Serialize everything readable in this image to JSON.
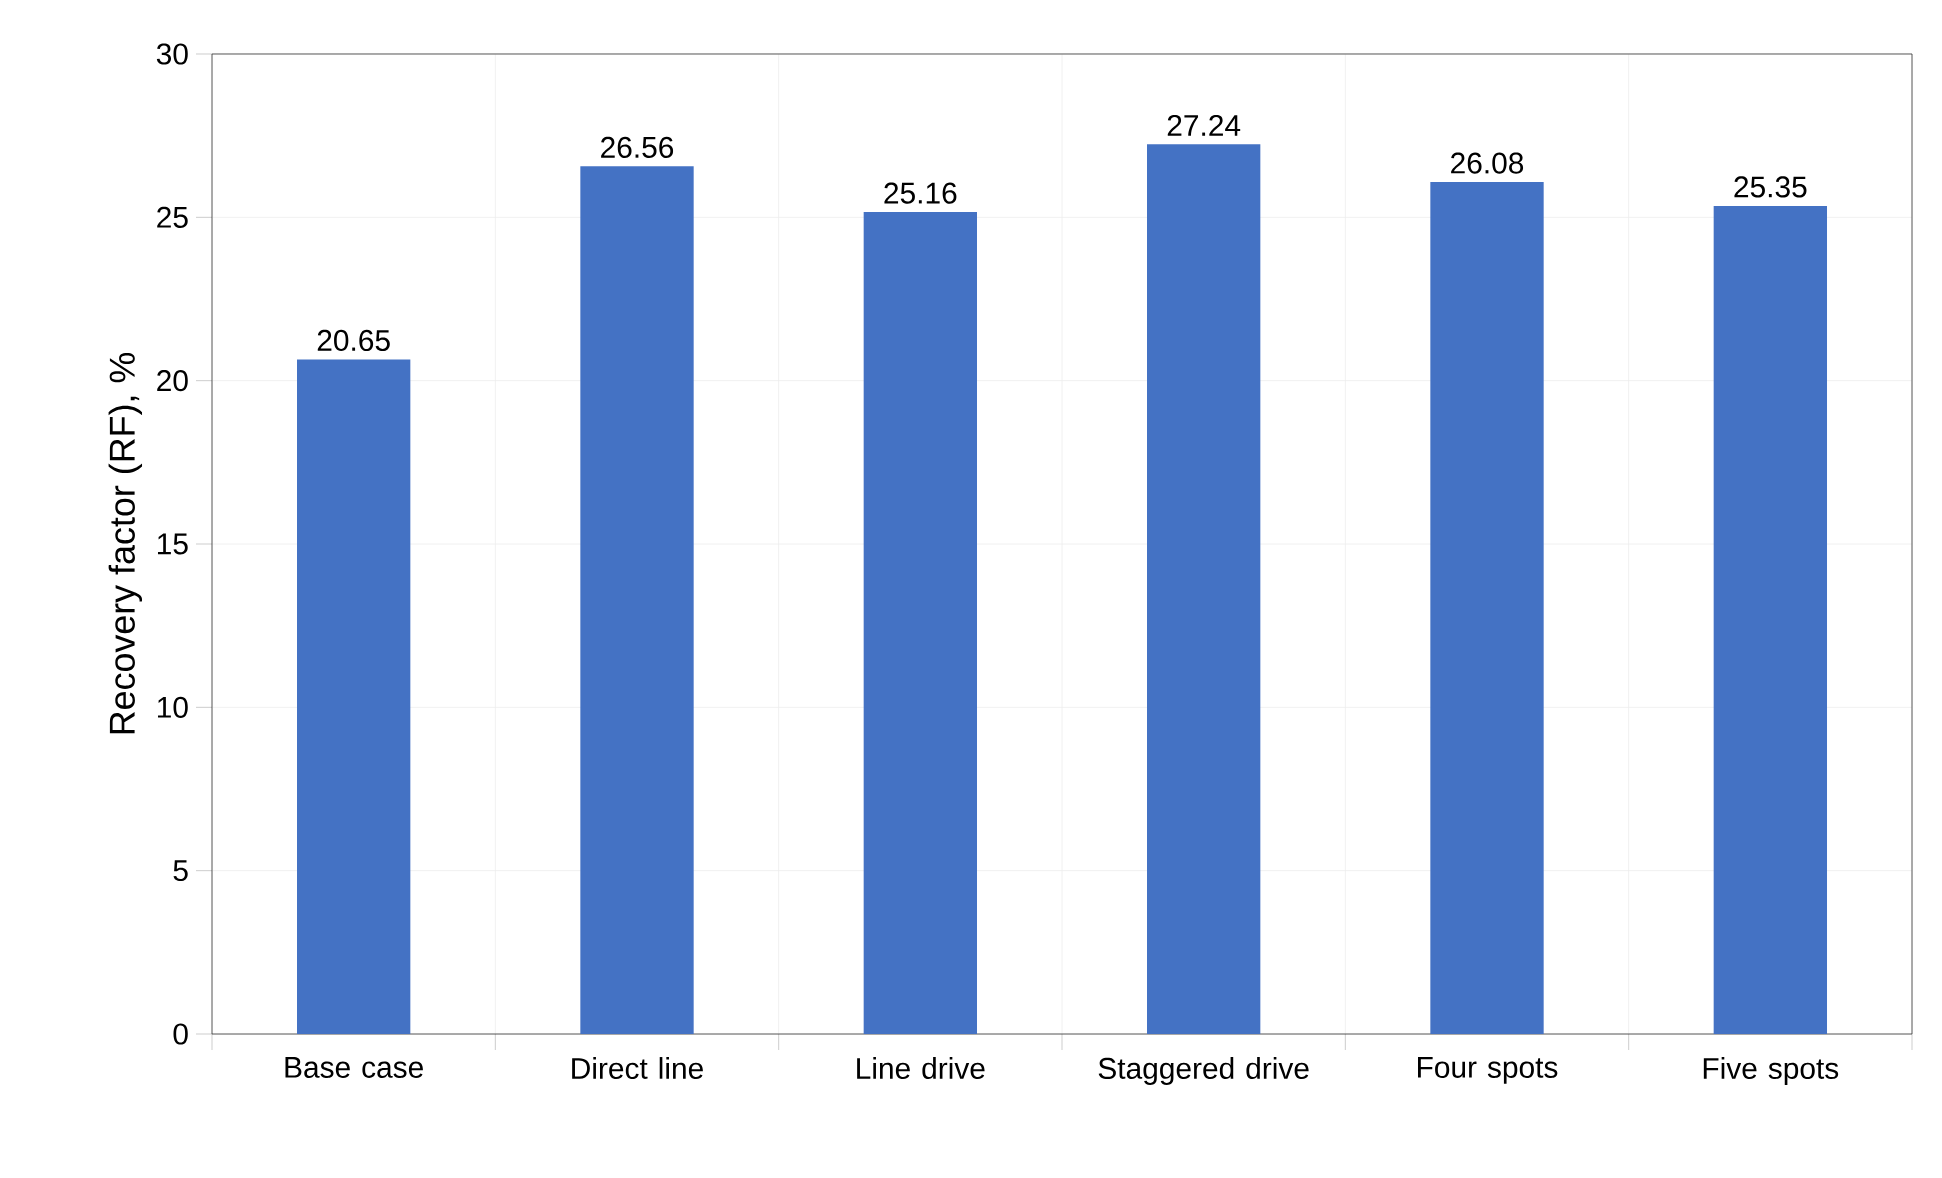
{
  "chart_data": {
    "type": "bar",
    "ylabel": "Recovery factor (RF), %",
    "categories": [
      "Base case",
      "Direct line",
      "Line drive",
      "Staggered drive",
      "Four spots",
      "Five spots"
    ],
    "values": [
      20.65,
      26.56,
      25.16,
      27.24,
      26.08,
      25.35
    ],
    "color": "#4472c4",
    "ylim": [
      0,
      30
    ],
    "yticks": [
      0,
      5,
      10,
      15,
      20,
      25,
      30
    ],
    "grid": true,
    "data_labels": true
  }
}
